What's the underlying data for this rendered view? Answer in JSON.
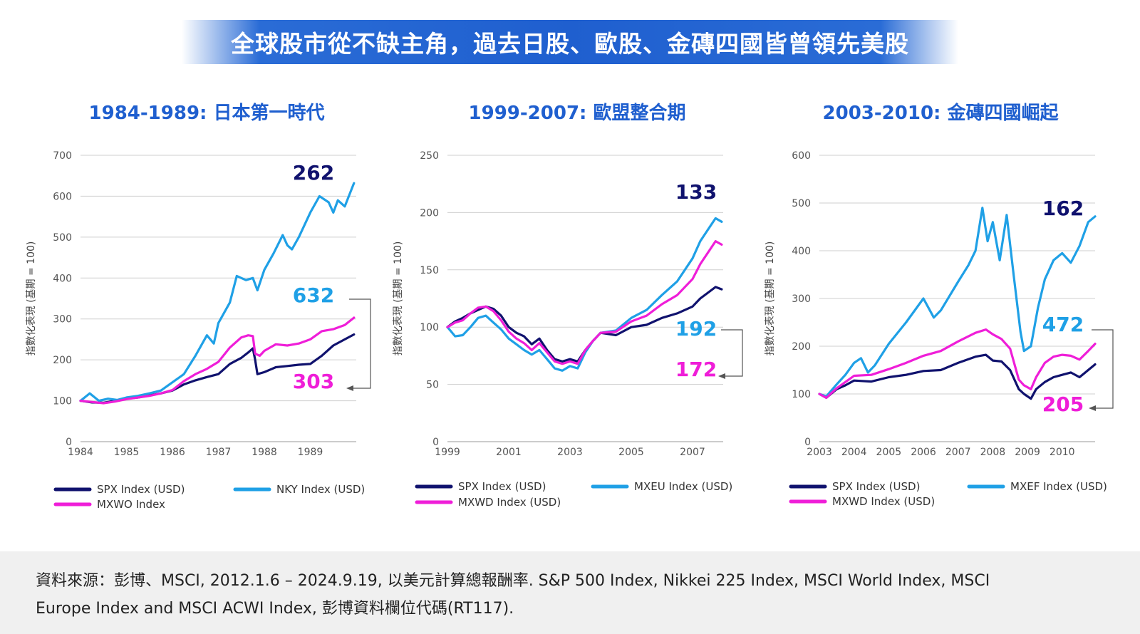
{
  "banner": {
    "title": "全球股市從不缺主角，過去日股、歐股、金磚四國皆曾領先美股"
  },
  "colors": {
    "navy": "#10126e",
    "blue": "#1fa0e6",
    "magenta": "#ef1ed8",
    "title_blue": "#1f5fcf",
    "banner_blue": "#1f5fcf"
  },
  "footer": {
    "line1": "資料來源：彭博、MSCI, 2012.1.6 – 2024.9.19, 以美元計算總報酬率. S&P 500 Index, Nikkei 225 Index, MSCI World Index, MSCI",
    "line2": "Europe Index and MSCI ACWI Index, 彭博資料欄位代碼(RT117)."
  },
  "chart_data": [
    {
      "type": "line",
      "title": "1984-1989: 日本第一時代",
      "ylabel": "指數化表現 (基期 = 100)",
      "ylim": [
        0,
        700
      ],
      "yticks": [
        "0",
        "100",
        "200",
        "300",
        "400",
        "500",
        "600",
        "700"
      ],
      "xlim": [
        1984,
        1990.0
      ],
      "xticks": [
        "1984",
        "1985",
        "1986",
        "1987",
        "1988",
        "1989"
      ],
      "grid": true,
      "legend_position": "bottom",
      "series": [
        {
          "name": "SPX Index (USD)",
          "color": "#10126e",
          "end_label": "262",
          "x": [
            1984,
            1984.25,
            1984.5,
            1984.75,
            1985,
            1985.25,
            1985.5,
            1985.75,
            1986,
            1986.25,
            1986.5,
            1986.75,
            1987,
            1987.25,
            1987.5,
            1987.65,
            1987.75,
            1987.8,
            1987.85,
            1988,
            1988.25,
            1988.5,
            1988.75,
            1989,
            1989.25,
            1989.5,
            1989.75,
            1989.95
          ],
          "values": [
            100,
            96,
            95,
            100,
            105,
            108,
            113,
            118,
            125,
            140,
            150,
            158,
            165,
            190,
            205,
            218,
            228,
            200,
            165,
            170,
            182,
            185,
            188,
            190,
            210,
            235,
            250,
            262
          ]
        },
        {
          "name": "NKY Index (USD)",
          "color": "#1fa0e6",
          "end_label": "632",
          "x": [
            1984,
            1984.2,
            1984.4,
            1984.6,
            1984.8,
            1985,
            1985.25,
            1985.5,
            1985.75,
            1986,
            1986.25,
            1986.5,
            1986.75,
            1986.9,
            1987,
            1987.25,
            1987.4,
            1987.6,
            1987.75,
            1987.85,
            1988,
            1988.2,
            1988.4,
            1988.5,
            1988.6,
            1988.75,
            1989,
            1989.2,
            1989.4,
            1989.5,
            1989.6,
            1989.75,
            1989.95
          ],
          "values": [
            100,
            118,
            100,
            105,
            102,
            108,
            112,
            118,
            125,
            145,
            165,
            210,
            260,
            240,
            290,
            340,
            405,
            395,
            400,
            370,
            420,
            460,
            505,
            480,
            470,
            500,
            560,
            600,
            585,
            560,
            590,
            575,
            632
          ]
        },
        {
          "name": "MXWO Index",
          "color": "#ef1ed8",
          "end_label": "303",
          "x": [
            1984,
            1984.25,
            1984.5,
            1984.75,
            1985,
            1985.25,
            1985.5,
            1985.75,
            1986,
            1986.25,
            1986.5,
            1986.75,
            1987,
            1987.25,
            1987.5,
            1987.65,
            1987.75,
            1987.8,
            1987.9,
            1988,
            1988.25,
            1988.5,
            1988.75,
            1989,
            1989.25,
            1989.5,
            1989.75,
            1989.95
          ],
          "values": [
            100,
            97,
            94,
            98,
            104,
            108,
            112,
            118,
            126,
            148,
            165,
            178,
            195,
            230,
            255,
            260,
            258,
            215,
            210,
            222,
            238,
            235,
            240,
            250,
            270,
            275,
            285,
            303
          ]
        }
      ]
    },
    {
      "type": "line",
      "title": "1999-2007: 歐盟整合期",
      "ylabel": "指數化表現 (基期 = 100)",
      "ylim": [
        0,
        250
      ],
      "yticks": [
        "0",
        "50",
        "100",
        "150",
        "200",
        "250"
      ],
      "xlim": [
        1999,
        2008.0
      ],
      "xticks": [
        "1999",
        "2001",
        "2003",
        "2005",
        "2007"
      ],
      "grid": true,
      "legend_position": "bottom",
      "series": [
        {
          "name": "SPX Index (USD)",
          "color": "#10126e",
          "end_label": "133",
          "x": [
            1999,
            1999.25,
            1999.5,
            1999.75,
            2000,
            2000.25,
            2000.5,
            2000.75,
            2001,
            2001.25,
            2001.5,
            2001.75,
            2002,
            2002.25,
            2002.5,
            2002.75,
            2003,
            2003.25,
            2003.5,
            2003.75,
            2004,
            2004.5,
            2005,
            2005.5,
            2006,
            2006.5,
            2007,
            2007.25,
            2007.5,
            2007.75,
            2007.95
          ],
          "values": [
            100,
            105,
            108,
            112,
            115,
            118,
            116,
            110,
            100,
            95,
            92,
            85,
            90,
            80,
            72,
            70,
            72,
            70,
            80,
            88,
            95,
            93,
            100,
            102,
            108,
            112,
            118,
            125,
            130,
            135,
            133
          ]
        },
        {
          "name": "MXEU Index (USD)",
          "color": "#1fa0e6",
          "end_label": "192",
          "x": [
            1999,
            1999.25,
            1999.5,
            1999.75,
            2000,
            2000.25,
            2000.5,
            2000.75,
            2001,
            2001.25,
            2001.5,
            2001.75,
            2002,
            2002.25,
            2002.5,
            2002.75,
            2003,
            2003.25,
            2003.5,
            2003.75,
            2004,
            2004.5,
            2005,
            2005.5,
            2006,
            2006.5,
            2007,
            2007.25,
            2007.5,
            2007.75,
            2007.95
          ],
          "values": [
            100,
            92,
            93,
            100,
            108,
            110,
            104,
            98,
            90,
            85,
            80,
            76,
            80,
            72,
            64,
            62,
            66,
            64,
            78,
            88,
            95,
            97,
            108,
            115,
            128,
            140,
            160,
            175,
            185,
            195,
            192
          ]
        },
        {
          "name": "MXWD Index (USD)",
          "color": "#ef1ed8",
          "end_label": "172",
          "x": [
            1999,
            1999.25,
            1999.5,
            1999.75,
            2000,
            2000.25,
            2000.5,
            2000.75,
            2001,
            2001.25,
            2001.5,
            2001.75,
            2002,
            2002.25,
            2002.5,
            2002.75,
            2003,
            2003.25,
            2003.5,
            2003.75,
            2004,
            2004.5,
            2005,
            2005.5,
            2006,
            2006.5,
            2007,
            2007.25,
            2007.5,
            2007.75,
            2007.95
          ],
          "values": [
            100,
            104,
            106,
            112,
            117,
            118,
            114,
            106,
            96,
            90,
            86,
            80,
            86,
            78,
            70,
            68,
            70,
            68,
            80,
            88,
            95,
            96,
            105,
            110,
            120,
            128,
            142,
            155,
            165,
            175,
            172
          ]
        }
      ]
    },
    {
      "type": "line",
      "title": "2003-2010: 金磚四國崛起",
      "ylabel": "指數化表現 (基期 = 100)",
      "ylim": [
        0,
        600
      ],
      "yticks": [
        "0",
        "100",
        "200",
        "300",
        "400",
        "500",
        "600"
      ],
      "xlim": [
        2003,
        2010.95
      ],
      "xticks": [
        "2003",
        "2004",
        "2005",
        "2006",
        "2007",
        "2008",
        "2009",
        "2010"
      ],
      "grid": true,
      "legend_position": "bottom",
      "series": [
        {
          "name": "SPX Index (USD)",
          "color": "#10126e",
          "end_label": "162",
          "x": [
            2003,
            2003.2,
            2003.5,
            2003.75,
            2004,
            2004.5,
            2005,
            2005.5,
            2006,
            2006.5,
            2007,
            2007.5,
            2007.8,
            2008,
            2008.25,
            2008.5,
            2008.75,
            2008.9,
            2009.1,
            2009.25,
            2009.5,
            2009.75,
            2010,
            2010.25,
            2010.5,
            2010.75,
            2010.95
          ],
          "values": [
            100,
            92,
            110,
            118,
            128,
            126,
            135,
            140,
            148,
            150,
            165,
            178,
            182,
            170,
            168,
            150,
            110,
            100,
            90,
            110,
            125,
            135,
            140,
            145,
            135,
            150,
            162
          ]
        },
        {
          "name": "MXEF Index (USD)",
          "color": "#1fa0e6",
          "end_label": "472",
          "x": [
            2003,
            2003.2,
            2003.5,
            2003.75,
            2004,
            2004.2,
            2004.4,
            2004.6,
            2005,
            2005.5,
            2006,
            2006.3,
            2006.5,
            2007,
            2007.3,
            2007.5,
            2007.7,
            2007.85,
            2008,
            2008.2,
            2008.4,
            2008.6,
            2008.8,
            2008.9,
            2009.1,
            2009.3,
            2009.5,
            2009.75,
            2010,
            2010.25,
            2010.5,
            2010.75,
            2010.95
          ],
          "values": [
            100,
            95,
            120,
            140,
            165,
            175,
            145,
            160,
            205,
            250,
            300,
            260,
            275,
            335,
            370,
            400,
            490,
            420,
            460,
            380,
            475,
            350,
            230,
            190,
            200,
            280,
            340,
            380,
            395,
            375,
            410,
            460,
            472
          ]
        },
        {
          "name": "MXWD Index (USD)",
          "color": "#ef1ed8",
          "end_label": "205",
          "x": [
            2003,
            2003.2,
            2003.5,
            2003.75,
            2004,
            2004.5,
            2005,
            2005.5,
            2006,
            2006.5,
            2007,
            2007.5,
            2007.8,
            2008,
            2008.25,
            2008.5,
            2008.75,
            2008.9,
            2009.1,
            2009.25,
            2009.5,
            2009.75,
            2010,
            2010.25,
            2010.5,
            2010.75,
            2010.95
          ],
          "values": [
            100,
            92,
            112,
            125,
            138,
            140,
            152,
            165,
            180,
            190,
            210,
            228,
            235,
            225,
            215,
            195,
            130,
            118,
            110,
            135,
            165,
            178,
            182,
            180,
            172,
            190,
            205
          ]
        }
      ]
    }
  ]
}
